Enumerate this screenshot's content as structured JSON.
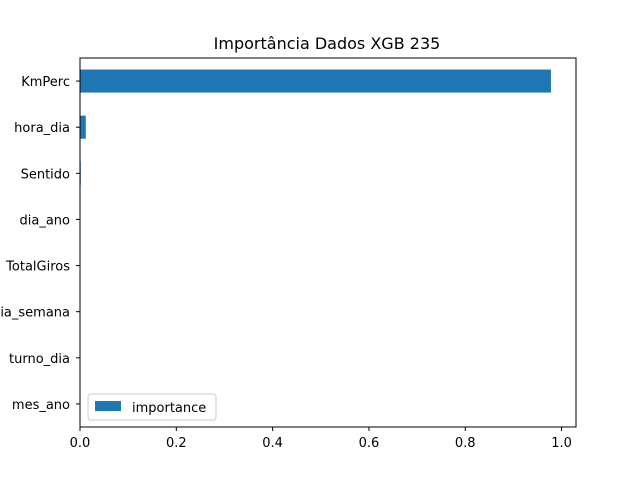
{
  "chart_data": {
    "type": "bar",
    "orientation": "horizontal",
    "title": "Importância Dados XGB 235",
    "xlabel": "",
    "ylabel": "",
    "categories": [
      "KmPerc",
      "hora_dia",
      "Sentido",
      "dia_ano",
      "TotalGiros",
      "dia_semana",
      "turno_dia",
      "mes_ano"
    ],
    "series": [
      {
        "name": "importance",
        "values": [
          0.978,
          0.012,
          0.0015,
          0.001,
          0.0008,
          0.0005,
          0.0003,
          0.0002
        ],
        "color": "#1f77b4"
      }
    ],
    "xlim": [
      0,
      1.03
    ],
    "xticks": [
      "0.0",
      "0.2",
      "0.4",
      "0.6",
      "0.8",
      "1.0"
    ],
    "grid": false,
    "legend_position": "lower-left"
  }
}
